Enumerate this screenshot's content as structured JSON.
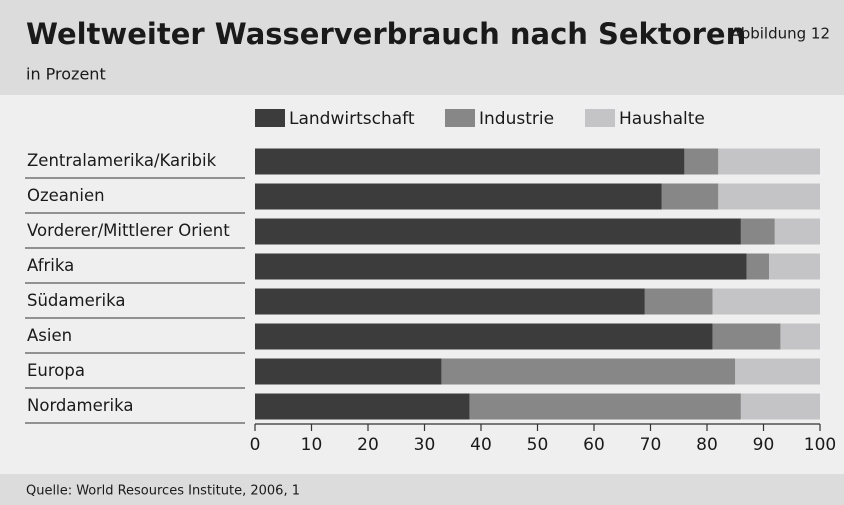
{
  "chart_data": {
    "type": "stacked-hbar",
    "title": "Weltweiter Wasserverbrauch nach Sektoren",
    "subtitle": "in Prozent",
    "figure_label": "Abbildung 12",
    "source": "Quelle: World Resources Institute, 2006, 1",
    "categories": [
      "Zentralamerika/Karibik",
      "Ozeanien",
      "Vorderer/Mittlerer Orient",
      "Afrika",
      "Südamerika",
      "Asien",
      "Europa",
      "Nordamerika"
    ],
    "series": [
      {
        "name": "Landwirtschaft",
        "color": "#3c3c3c",
        "values": [
          76,
          72,
          86,
          87,
          69,
          81,
          33,
          38
        ]
      },
      {
        "name": "Industrie",
        "color": "#878787",
        "values": [
          6,
          10,
          6,
          4,
          12,
          12,
          52,
          48
        ]
      },
      {
        "name": "Haushalte",
        "color": "#c4c4c6",
        "values": [
          18,
          18,
          8,
          9,
          19,
          7,
          15,
          14
        ]
      }
    ],
    "xlim": [
      0,
      100
    ],
    "xticks": [
      0,
      10,
      20,
      30,
      40,
      50,
      60,
      70,
      80,
      90,
      100
    ]
  }
}
